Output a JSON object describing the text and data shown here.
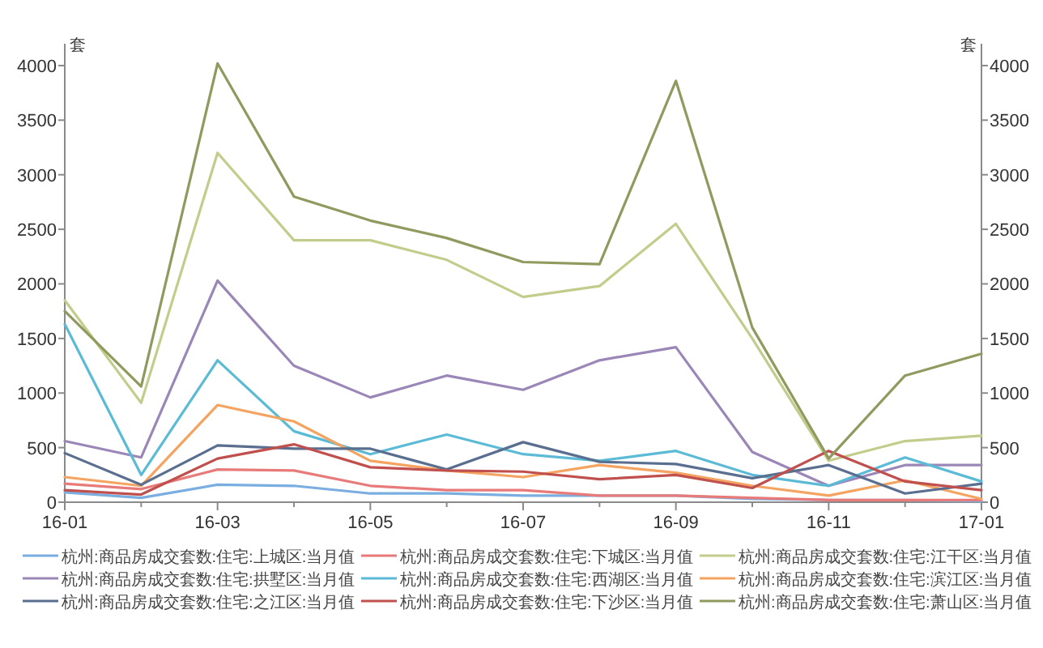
{
  "chart_data": {
    "type": "line",
    "categories": [
      "16-01",
      null,
      "16-03",
      null,
      "16-05",
      null,
      "16-07",
      null,
      "16-09",
      null,
      "16-11",
      null,
      "17-01"
    ],
    "series": [
      {
        "name": "杭州:商品房成交套数:住宅:上城区:当月值",
        "color": "#7aaee0",
        "values": [
          90,
          40,
          160,
          150,
          80,
          80,
          60,
          60,
          60,
          30,
          20,
          20,
          10
        ]
      },
      {
        "name": "杭州:商品房成交套数:住宅:下城区:当月值",
        "color": "#e87a7a",
        "values": [
          170,
          120,
          300,
          290,
          150,
          110,
          110,
          60,
          60,
          40,
          20,
          20,
          20
        ]
      },
      {
        "name": "杭州:商品房成交套数:住宅:江干区:当月值",
        "color": "#c3cc8a",
        "values": [
          1850,
          910,
          3200,
          2400,
          2400,
          2220,
          1880,
          1980,
          2550,
          1500,
          380,
          560,
          610
        ]
      },
      {
        "name": "杭州:商品房成交套数:住宅:拱墅区:当月值",
        "color": "#9a87b8",
        "values": [
          560,
          410,
          2030,
          1250,
          960,
          1160,
          1030,
          1300,
          1420,
          460,
          150,
          340,
          340
        ]
      },
      {
        "name": "杭州:商品房成交套数:住宅:西湖区:当月值",
        "color": "#5bbad5",
        "values": [
          1630,
          250,
          1300,
          650,
          440,
          620,
          440,
          380,
          470,
          250,
          150,
          410,
          190
        ]
      },
      {
        "name": "杭州:商品房成交套数:住宅:滨江区:当月值",
        "color": "#f4a460",
        "values": [
          230,
          150,
          890,
          740,
          380,
          290,
          230,
          340,
          270,
          150,
          60,
          200,
          30
        ]
      },
      {
        "name": "杭州:商品房成交套数:住宅:之江区:当月值",
        "color": "#5a6f8f",
        "values": [
          450,
          160,
          520,
          490,
          490,
          300,
          550,
          370,
          350,
          220,
          340,
          80,
          170
        ]
      },
      {
        "name": "杭州:商品房成交套数:住宅:下沙区:当月值",
        "color": "#c0504d",
        "values": [
          110,
          70,
          400,
          530,
          320,
          290,
          280,
          210,
          250,
          130,
          470,
          190,
          110
        ]
      },
      {
        "name": "杭州:商品房成交套数:住宅:萧山区:当月值",
        "color": "#8f9a5e",
        "values": [
          1750,
          1060,
          4020,
          2800,
          2580,
          2420,
          2200,
          2180,
          3860,
          1600,
          400,
          1160,
          1360
        ]
      }
    ],
    "ylabel": "套",
    "y2label": "套",
    "ylim": [
      0,
      4200
    ],
    "yticks": [
      0,
      500,
      1000,
      1500,
      2000,
      2500,
      3000,
      3500,
      4000
    ],
    "y2lim": [
      0,
      4200
    ],
    "y2ticks": [
      0,
      500,
      1000,
      1500,
      2000,
      2500,
      3000,
      3500,
      4000
    ],
    "grid": false,
    "legend": "bottom",
    "marker": "none",
    "line_style": "solid"
  }
}
